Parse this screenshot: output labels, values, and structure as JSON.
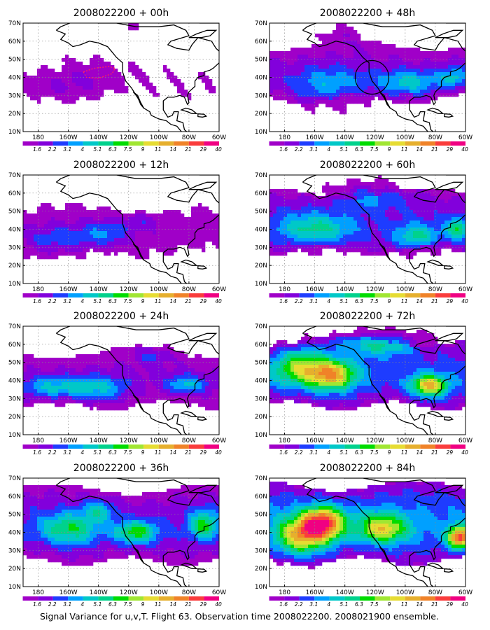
{
  "figure_caption": "Signal Variance for u,v,T. Flight 63. Observation time 2008022200. 2008021900 ensemble.",
  "colors": {
    "levels": [
      "#a000c8",
      "#8200dc",
      "#1e3cff",
      "#00a0ff",
      "#00c8c8",
      "#00d28c",
      "#00dc00",
      "#a0e632",
      "#e6dc32",
      "#e6af2d",
      "#f08228",
      "#fa3c3c",
      "#f00082"
    ],
    "coast": "#000000",
    "grid": "#888888",
    "flight_track": "#ff2060"
  },
  "chart_data": [
    {
      "type": "heatmap",
      "title": "2008022200 + 00h",
      "x_ticks": [
        "180",
        "160W",
        "140W",
        "120W",
        "100W",
        "80W",
        "60W"
      ],
      "y_ticks": [
        "10N",
        "20N",
        "30N",
        "40N",
        "50N",
        "60N",
        "70N"
      ],
      "xlim": [
        -190,
        -60
      ],
      "ylim": [
        10,
        70
      ],
      "grid": true,
      "colorbar_labels": [
        "1.6",
        "2.2",
        "3.1",
        "4",
        "5.1",
        "6.3",
        "7.5",
        "9",
        "11",
        "14",
        "21",
        "29",
        "40"
      ]
    },
    {
      "type": "heatmap",
      "title": "2008022200 + 48h",
      "x_ticks": [
        "180",
        "160W",
        "140W",
        "120W",
        "100W",
        "80W",
        "60W"
      ],
      "y_ticks": [
        "10N",
        "20N",
        "30N",
        "40N",
        "50N",
        "60N",
        "70N"
      ],
      "xlim": [
        -190,
        -60
      ],
      "ylim": [
        10,
        70
      ],
      "grid": true,
      "colorbar_labels": [
        "1.6",
        "2.2",
        "3.1",
        "4",
        "5.1",
        "6.3",
        "7.5",
        "9",
        "11",
        "14",
        "21",
        "29",
        "40"
      ]
    },
    {
      "type": "heatmap",
      "title": "2008022200 + 12h",
      "x_ticks": [
        "180",
        "160W",
        "140W",
        "120W",
        "100W",
        "80W",
        "60W"
      ],
      "y_ticks": [
        "10N",
        "20N",
        "30N",
        "40N",
        "50N",
        "60N",
        "70N"
      ],
      "xlim": [
        -190,
        -60
      ],
      "ylim": [
        10,
        70
      ],
      "grid": true,
      "colorbar_labels": [
        "1.6",
        "2.2",
        "3.1",
        "4",
        "5.1",
        "6.3",
        "7.5",
        "9",
        "11",
        "14",
        "21",
        "29",
        "40"
      ]
    },
    {
      "type": "heatmap",
      "title": "2008022200 + 60h",
      "x_ticks": [
        "180",
        "160W",
        "140W",
        "120W",
        "100W",
        "80W",
        "60W"
      ],
      "y_ticks": [
        "10N",
        "20N",
        "30N",
        "40N",
        "50N",
        "60N",
        "70N"
      ],
      "xlim": [
        -190,
        -60
      ],
      "ylim": [
        10,
        70
      ],
      "grid": true,
      "colorbar_labels": [
        "1.6",
        "2.2",
        "3.1",
        "4",
        "5.1",
        "6.3",
        "7.5",
        "9",
        "11",
        "14",
        "21",
        "29",
        "40"
      ]
    },
    {
      "type": "heatmap",
      "title": "2008022200 + 24h",
      "x_ticks": [
        "180",
        "160W",
        "140W",
        "120W",
        "100W",
        "80W",
        "60W"
      ],
      "y_ticks": [
        "10N",
        "20N",
        "30N",
        "40N",
        "50N",
        "60N",
        "70N"
      ],
      "xlim": [
        -190,
        -60
      ],
      "ylim": [
        10,
        70
      ],
      "grid": true,
      "colorbar_labels": [
        "1.6",
        "2.2",
        "3.1",
        "4",
        "5.1",
        "6.3",
        "7.5",
        "9",
        "11",
        "14",
        "21",
        "29",
        "40"
      ]
    },
    {
      "type": "heatmap",
      "title": "2008022200 + 72h",
      "x_ticks": [
        "180",
        "160W",
        "140W",
        "120W",
        "100W",
        "80W",
        "60W"
      ],
      "y_ticks": [
        "10N",
        "20N",
        "30N",
        "40N",
        "50N",
        "60N",
        "70N"
      ],
      "xlim": [
        -190,
        -60
      ],
      "ylim": [
        10,
        70
      ],
      "grid": true,
      "colorbar_labels": [
        "1.6",
        "2.2",
        "3.1",
        "4",
        "5.1",
        "6.3",
        "7.5",
        "9",
        "11",
        "14",
        "21",
        "29",
        "40"
      ]
    },
    {
      "type": "heatmap",
      "title": "2008022200 + 36h",
      "x_ticks": [
        "180",
        "160W",
        "140W",
        "120W",
        "100W",
        "80W",
        "60W"
      ],
      "y_ticks": [
        "10N",
        "20N",
        "30N",
        "40N",
        "50N",
        "60N",
        "70N"
      ],
      "xlim": [
        -190,
        -60
      ],
      "ylim": [
        10,
        70
      ],
      "grid": true,
      "colorbar_labels": [
        "1.6",
        "2.2",
        "3.1",
        "4",
        "5.1",
        "6.3",
        "7.5",
        "9",
        "11",
        "14",
        "21",
        "29",
        "40"
      ]
    },
    {
      "type": "heatmap",
      "title": "2008022200 + 84h",
      "x_ticks": [
        "180",
        "160W",
        "140W",
        "120W",
        "100W",
        "80W",
        "60W"
      ],
      "y_ticks": [
        "10N",
        "20N",
        "30N",
        "40N",
        "50N",
        "60N",
        "70N"
      ],
      "xlim": [
        -190,
        -60
      ],
      "ylim": [
        10,
        70
      ],
      "grid": true,
      "colorbar_labels": [
        "1.6",
        "2.2",
        "3.1",
        "4",
        "5.1",
        "6.3",
        "7.5",
        "9",
        "11",
        "14",
        "21",
        "29",
        "40"
      ]
    }
  ]
}
